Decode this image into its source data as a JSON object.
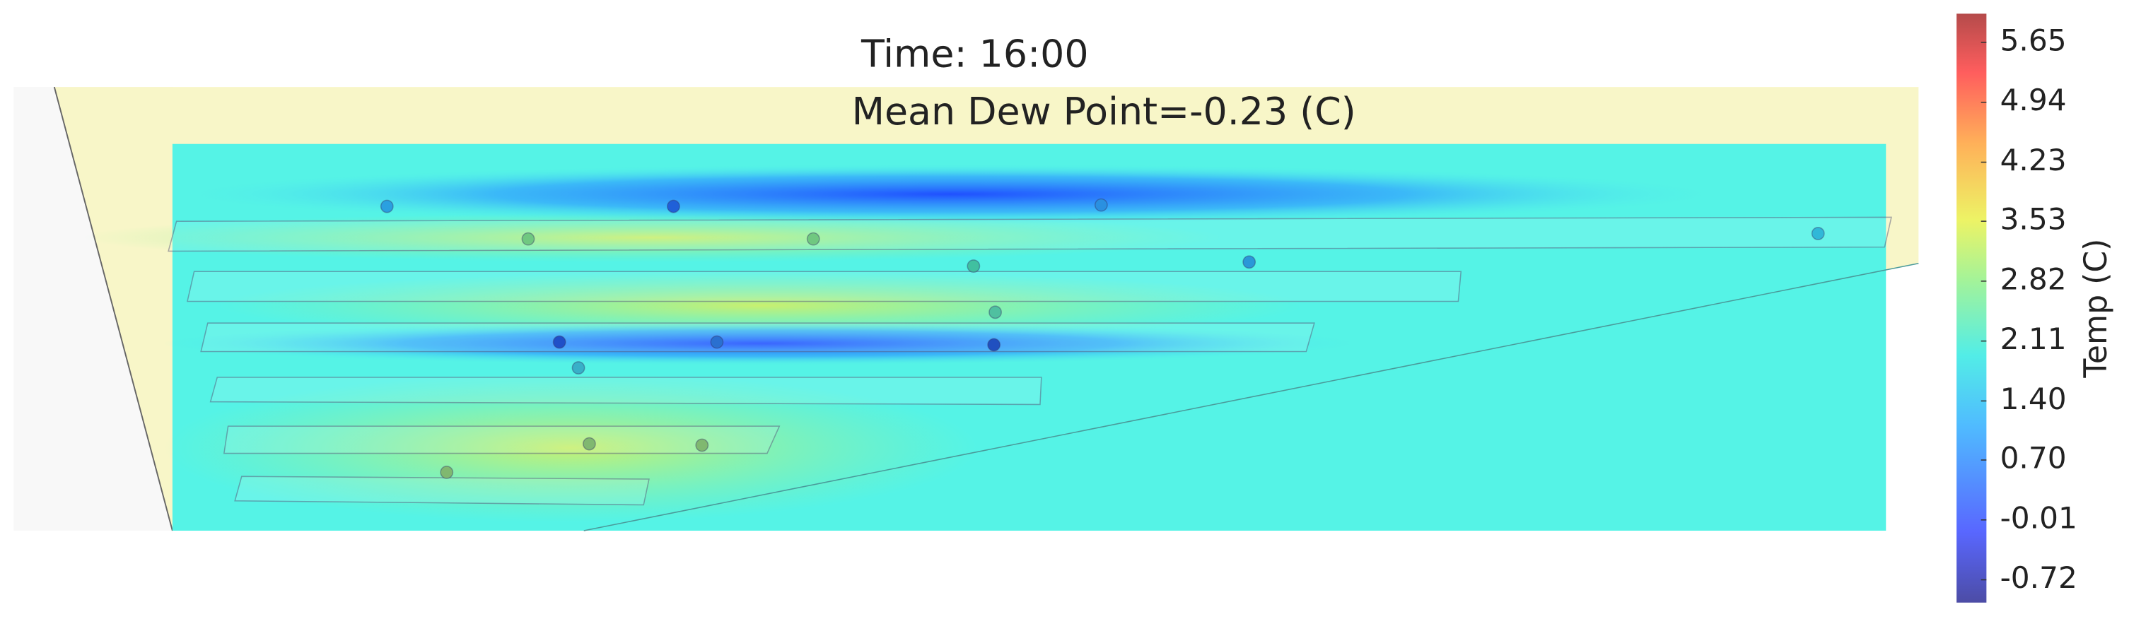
{
  "chart_data": {
    "type": "contour",
    "title": "Time: 16:00",
    "subtitle": "Mean Dew Point=-0.23 (C)",
    "colorbar": {
      "label": "Temp (C)",
      "ylim": [
        -0.99,
        5.99
      ],
      "yticks": [
        5.65,
        4.94,
        4.23,
        3.53,
        2.82,
        2.11,
        {
          "value": 1.4,
          "label": "1.40"
        },
        {
          "value": 0.7,
          "label": "0.70"
        },
        -0.01,
        -0.72
      ]
    }
  }
}
